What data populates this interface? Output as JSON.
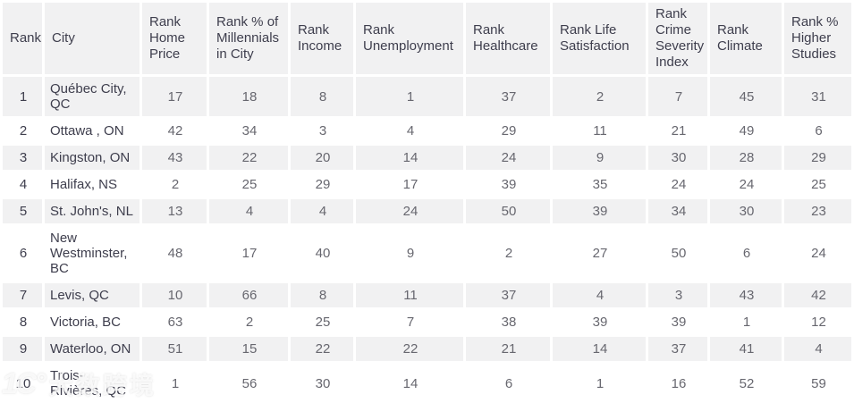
{
  "chart_data": {
    "type": "table",
    "title": "",
    "columns": [
      "Rank",
      "City",
      "Rank Home Price",
      "Rank % of Millennials in City",
      "Rank Income",
      "Rank Unemployment",
      "Rank Healthcare",
      "Rank Life Satisfaction",
      "Rank Crime Severity Index",
      "Rank Climate",
      "Rank % Higher Studies"
    ],
    "rows": [
      {
        "rank": "1",
        "city": "Québec City, QC",
        "values": [
          "17",
          "18",
          "8",
          "1",
          "37",
          "2",
          "7",
          "45",
          "31"
        ]
      },
      {
        "rank": "2",
        "city": "Ottawa , ON",
        "values": [
          "42",
          "34",
          "3",
          "4",
          "29",
          "11",
          "21",
          "49",
          "6"
        ]
      },
      {
        "rank": "3",
        "city": "Kingston, ON",
        "values": [
          "43",
          "22",
          "20",
          "14",
          "24",
          "9",
          "30",
          "28",
          "29"
        ]
      },
      {
        "rank": "4",
        "city": "Halifax, NS",
        "values": [
          "2",
          "25",
          "29",
          "17",
          "39",
          "35",
          "24",
          "24",
          "25"
        ]
      },
      {
        "rank": "5",
        "city": "St. John's, NL",
        "values": [
          "13",
          "4",
          "4",
          "24",
          "50",
          "39",
          "34",
          "30",
          "23"
        ]
      },
      {
        "rank": "6",
        "city": "New Westminster, BC",
        "values": [
          "48",
          "17",
          "40",
          "9",
          "2",
          "27",
          "50",
          "6",
          "24"
        ]
      },
      {
        "rank": "7",
        "city": "Levis, QC",
        "values": [
          "10",
          "66",
          "8",
          "11",
          "37",
          "4",
          "3",
          "43",
          "42"
        ]
      },
      {
        "rank": "8",
        "city": "Victoria, BC",
        "values": [
          "63",
          "2",
          "25",
          "7",
          "38",
          "39",
          "39",
          "1",
          "12"
        ]
      },
      {
        "rank": "9",
        "city": "Waterloo, ON",
        "values": [
          "51",
          "15",
          "22",
          "22",
          "21",
          "14",
          "37",
          "41",
          "4"
        ]
      },
      {
        "rank": "10",
        "city": "Trois-Rivières, QC",
        "values": [
          "1",
          "56",
          "30",
          "14",
          "6",
          "1",
          "16",
          "52",
          "59"
        ]
      }
    ]
  },
  "watermark": {
    "logo_text": "1C°",
    "brand_text": "大数跨境"
  },
  "colors": {
    "row_stripe": "#f1f1f2",
    "header_bg": "#f1f1f2",
    "text_dark": "#3e3e4d",
    "text_number": "#67676f",
    "watermark": "#ffffff",
    "page_background": "#ffffff"
  }
}
